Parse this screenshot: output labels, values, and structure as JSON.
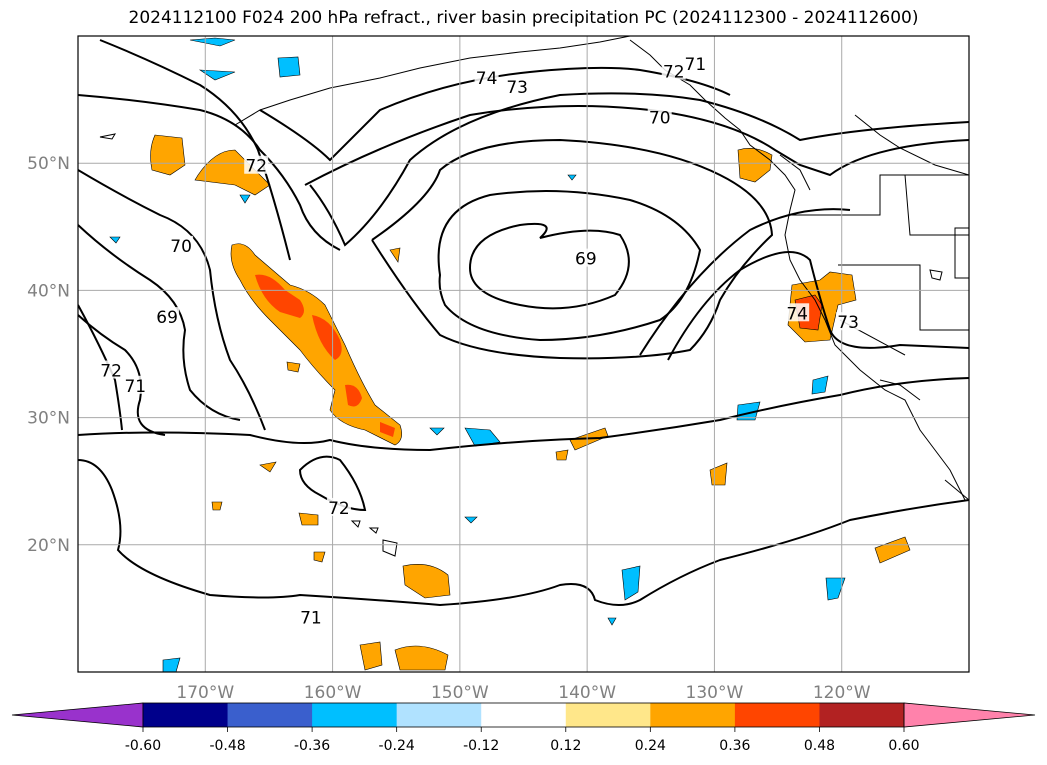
{
  "title": "2024112100 F024 200 hPa refract., river basin precipitation PC (2024112300 - 2024112600)",
  "map": {
    "projection": "PlateCarree",
    "lon_range": [
      -180,
      -110
    ],
    "lat_range": [
      10,
      60
    ],
    "lon_ticks": [
      {
        "value": -170,
        "label": "170°W"
      },
      {
        "value": -160,
        "label": "160°W"
      },
      {
        "value": -150,
        "label": "150°W"
      },
      {
        "value": -140,
        "label": "140°W"
      },
      {
        "value": -130,
        "label": "130°W"
      },
      {
        "value": -120,
        "label": "120°W"
      }
    ],
    "lat_ticks": [
      {
        "value": 50,
        "label": "50°N"
      },
      {
        "value": 40,
        "label": "40°N"
      },
      {
        "value": 30,
        "label": "30°N"
      },
      {
        "value": 20,
        "label": "20°N"
      }
    ],
    "grid": true
  },
  "contour_labels": [
    {
      "text": "74",
      "lon": -147.9,
      "lat": 56.7
    },
    {
      "text": "73",
      "lon": -145.5,
      "lat": 56.0
    },
    {
      "text": "72",
      "lon": -133.2,
      "lat": 57.2
    },
    {
      "text": "71",
      "lon": -131.5,
      "lat": 57.8
    },
    {
      "text": "70",
      "lon": -134.3,
      "lat": 53.6
    },
    {
      "text": "72",
      "lon": -166.0,
      "lat": 49.8
    },
    {
      "text": "70",
      "lon": -171.9,
      "lat": 43.5
    },
    {
      "text": "69",
      "lon": -140.1,
      "lat": 42.5
    },
    {
      "text": "69",
      "lon": -173.0,
      "lat": 37.9
    },
    {
      "text": "72",
      "lon": -177.4,
      "lat": 33.7
    },
    {
      "text": "71",
      "lon": -175.5,
      "lat": 32.5
    },
    {
      "text": "74",
      "lon": -123.5,
      "lat": 38.2
    },
    {
      "text": "73",
      "lon": -119.5,
      "lat": 37.5
    },
    {
      "text": "72",
      "lon": -159.5,
      "lat": 22.9
    },
    {
      "text": "71",
      "lon": -161.7,
      "lat": 14.3
    }
  ],
  "colorbar": {
    "levels": [
      "-0.60",
      "-0.48",
      "-0.36",
      "-0.24",
      "-0.12",
      "0.12",
      "0.24",
      "0.36",
      "0.48",
      "0.60"
    ],
    "colors": [
      "#9932cc",
      "#00008b",
      "#3a5fcd",
      "#00bfff",
      "#b0e2ff",
      "#ffffff",
      "#ffe78a",
      "#ffa500",
      "#ff4500",
      "#b22222",
      "#ff82ab"
    ],
    "extend": "both"
  }
}
